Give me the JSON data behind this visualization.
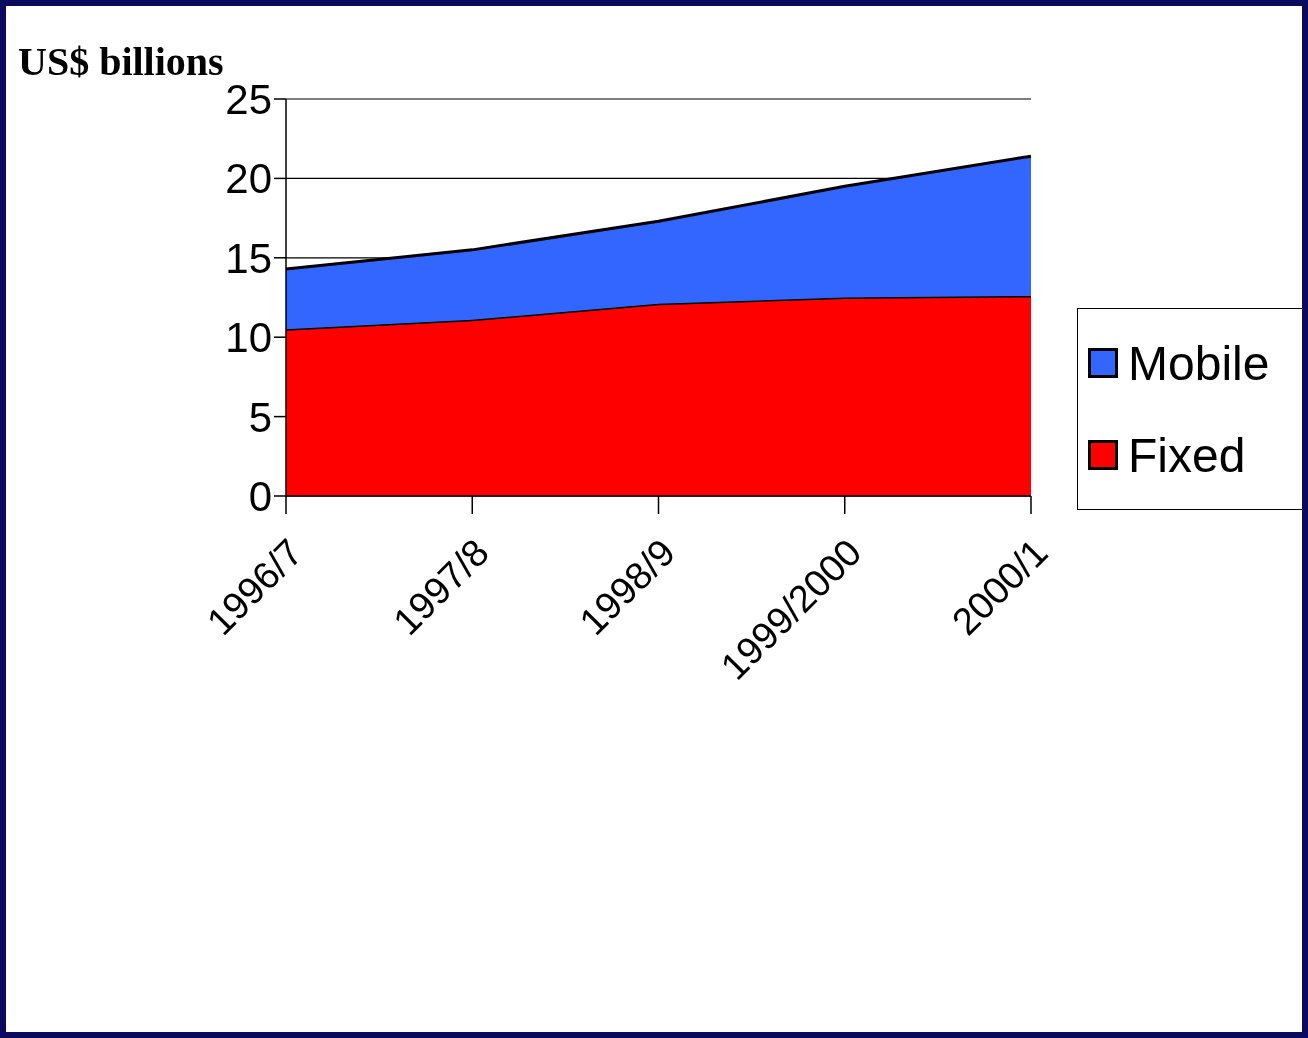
{
  "chart_data": {
    "type": "area",
    "ylabel": "US$ billions",
    "categories": [
      "1996/7",
      "1997/8",
      "1998/9",
      "1999/2000",
      "2000/1"
    ],
    "stacked": true,
    "series": [
      {
        "name": "Fixed",
        "color": "#ff0000",
        "values": [
          10.5,
          11.1,
          12.1,
          12.5,
          12.6
        ]
      },
      {
        "name": "Mobile",
        "color": "#3366ff",
        "values": [
          3.8,
          4.4,
          5.2,
          7.0,
          8.8
        ]
      }
    ],
    "ylim": [
      0,
      25
    ],
    "yticks": [
      0,
      5,
      10,
      15,
      20,
      25
    ],
    "grid": "y",
    "legend": "right"
  }
}
